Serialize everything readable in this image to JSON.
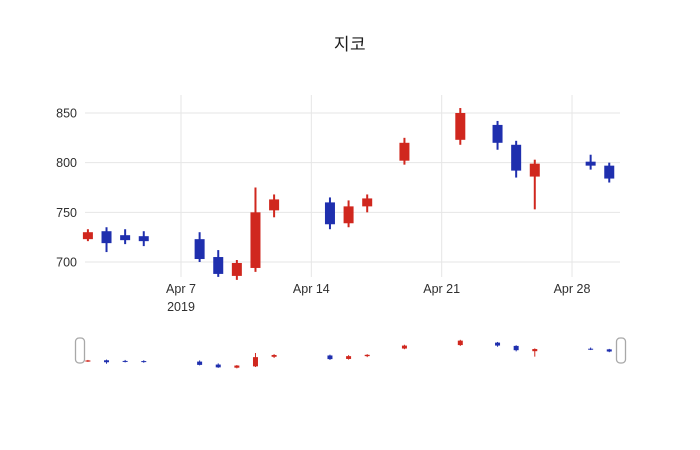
{
  "title": "지코",
  "colors": {
    "up": "#d0271e",
    "down": "#1f2fae",
    "grid": "#e6e6e6",
    "text": "#2f2f2f",
    "slider_handle_fill": "#ffffff",
    "slider_handle_border": "#a8a8a8",
    "background": "#ffffff"
  },
  "chart_data": {
    "type": "candlestick",
    "title": "지코",
    "x": [
      "2019-04-02",
      "2019-04-03",
      "2019-04-04",
      "2019-04-05",
      "2019-04-08",
      "2019-04-09",
      "2019-04-10",
      "2019-04-11",
      "2019-04-12",
      "2019-04-15",
      "2019-04-16",
      "2019-04-17",
      "2019-04-19",
      "2019-04-22",
      "2019-04-24",
      "2019-04-25",
      "2019-04-26",
      "2019-04-29",
      "2019-04-30"
    ],
    "open": [
      723,
      731,
      727,
      726,
      723,
      705,
      686,
      694,
      752,
      760,
      739,
      756,
      802,
      823,
      838,
      818,
      786,
      801,
      797
    ],
    "high": [
      733,
      735,
      733,
      731,
      730,
      712,
      702,
      775,
      768,
      765,
      762,
      768,
      825,
      855,
      842,
      822,
      803,
      808,
      800
    ],
    "low": [
      721,
      710,
      718,
      716,
      700,
      685,
      682,
      690,
      745,
      733,
      735,
      750,
      798,
      818,
      813,
      785,
      753,
      793,
      780
    ],
    "close": [
      730,
      719,
      722,
      721,
      703,
      688,
      699,
      750,
      763,
      738,
      756,
      764,
      820,
      850,
      820,
      792,
      799,
      797,
      784
    ],
    "yticks": [
      700,
      750,
      800,
      850
    ],
    "ylim": [
      678,
      872
    ],
    "xticks": [
      {
        "date": "2019-04-07",
        "label": "Apr 7",
        "sublabel": "2019"
      },
      {
        "date": "2019-04-14",
        "label": "Apr 14"
      },
      {
        "date": "2019-04-21",
        "label": "Apr 21"
      },
      {
        "date": "2019-04-28",
        "label": "Apr 28"
      }
    ],
    "grid": true,
    "legend_position": "none",
    "rangeslider": true
  }
}
